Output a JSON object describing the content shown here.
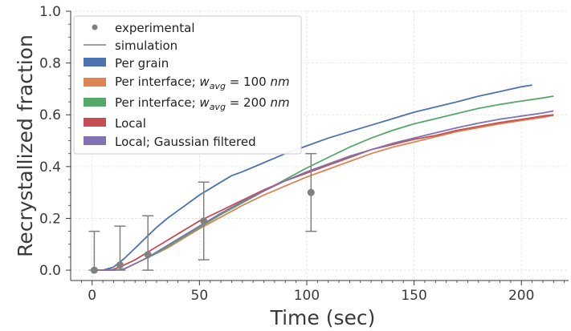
{
  "chart_data": {
    "type": "line",
    "xlabel": "Time (sec)",
    "ylabel": "Recrystallized fraction",
    "xlim": [
      -10,
      222
    ],
    "ylim": [
      -0.04,
      1.0
    ],
    "x_ticks": [
      "0",
      "50",
      "100",
      "150",
      "200"
    ],
    "y_ticks": [
      "0.0",
      "0.2",
      "0.4",
      "0.6",
      "0.8",
      "1.0"
    ],
    "grid": true,
    "legend_position": "top-left",
    "legend": {
      "experimental": "experimental",
      "simulation": "simulation",
      "per_grain": "Per grain",
      "per_interface_100": "Per interface; w_avg = 100 nm",
      "per_interface_200": "Per interface; w_avg = 200 nm",
      "local": "Local",
      "local_gaussian": "Local; Gaussian filtered"
    },
    "experimental": {
      "x": [
        1,
        13,
        26,
        52,
        102
      ],
      "y": [
        0.0,
        0.02,
        0.06,
        0.19,
        0.3
      ],
      "yerr_low": [
        0.0,
        0.0,
        0.0,
        0.04,
        0.15
      ],
      "yerr_high": [
        0.15,
        0.17,
        0.21,
        0.34,
        0.45
      ],
      "color": "#808080"
    },
    "series": [
      {
        "key": "per_grain",
        "color": "#4C72B0",
        "x": [
          0,
          5,
          10,
          15,
          20,
          25,
          30,
          35,
          40,
          45,
          50,
          55,
          60,
          65,
          70,
          80,
          90,
          100,
          110,
          120,
          130,
          140,
          150,
          160,
          170,
          180,
          190,
          200,
          205
        ],
        "y": [
          0.0,
          0.0,
          0.012,
          0.045,
          0.085,
          0.125,
          0.165,
          0.2,
          0.23,
          0.26,
          0.29,
          0.315,
          0.34,
          0.365,
          0.38,
          0.415,
          0.45,
          0.48,
          0.51,
          0.535,
          0.56,
          0.585,
          0.61,
          0.63,
          0.65,
          0.672,
          0.69,
          0.708,
          0.715
        ]
      },
      {
        "key": "per_interface_100",
        "color": "#DD8452",
        "x": [
          0,
          10,
          15,
          20,
          25,
          30,
          35,
          40,
          50,
          60,
          70,
          80,
          90,
          100,
          110,
          120,
          130,
          140,
          150,
          160,
          170,
          180,
          190,
          200,
          210,
          215
        ],
        "y": [
          0.0,
          0.0,
          0.005,
          0.025,
          0.045,
          0.065,
          0.085,
          0.11,
          0.16,
          0.205,
          0.25,
          0.29,
          0.325,
          0.36,
          0.39,
          0.42,
          0.45,
          0.475,
          0.495,
          0.515,
          0.535,
          0.55,
          0.565,
          0.578,
          0.59,
          0.598
        ]
      },
      {
        "key": "per_interface_200",
        "color": "#55A868",
        "x": [
          0,
          10,
          15,
          20,
          25,
          30,
          35,
          40,
          50,
          60,
          70,
          80,
          90,
          100,
          110,
          120,
          130,
          140,
          150,
          160,
          170,
          180,
          190,
          200,
          210,
          215
        ],
        "y": [
          0.0,
          0.0,
          0.005,
          0.025,
          0.045,
          0.065,
          0.09,
          0.115,
          0.165,
          0.215,
          0.26,
          0.305,
          0.35,
          0.395,
          0.435,
          0.475,
          0.51,
          0.54,
          0.565,
          0.585,
          0.605,
          0.625,
          0.64,
          0.653,
          0.665,
          0.672
        ]
      },
      {
        "key": "local",
        "color": "#C44E52",
        "x": [
          0,
          5,
          10,
          15,
          20,
          25,
          30,
          35,
          40,
          50,
          60,
          70,
          80,
          90,
          100,
          110,
          120,
          130,
          140,
          150,
          160,
          170,
          180,
          190,
          200,
          210,
          215
        ],
        "y": [
          0.0,
          0.0,
          0.003,
          0.02,
          0.04,
          0.065,
          0.09,
          0.115,
          0.14,
          0.19,
          0.23,
          0.27,
          0.31,
          0.345,
          0.375,
          0.405,
          0.435,
          0.465,
          0.485,
          0.505,
          0.52,
          0.54,
          0.555,
          0.57,
          0.582,
          0.595,
          0.6
        ]
      },
      {
        "key": "local_gaussian",
        "color": "#8172B3",
        "x": [
          0,
          10,
          15,
          20,
          25,
          30,
          35,
          40,
          50,
          60,
          70,
          80,
          90,
          100,
          110,
          120,
          130,
          140,
          150,
          160,
          170,
          180,
          190,
          200,
          210,
          215
        ],
        "y": [
          0.0,
          0.0,
          0.005,
          0.025,
          0.045,
          0.07,
          0.095,
          0.12,
          0.17,
          0.22,
          0.265,
          0.305,
          0.345,
          0.38,
          0.41,
          0.44,
          0.465,
          0.49,
          0.51,
          0.53,
          0.55,
          0.568,
          0.583,
          0.595,
          0.607,
          0.615
        ]
      }
    ]
  }
}
